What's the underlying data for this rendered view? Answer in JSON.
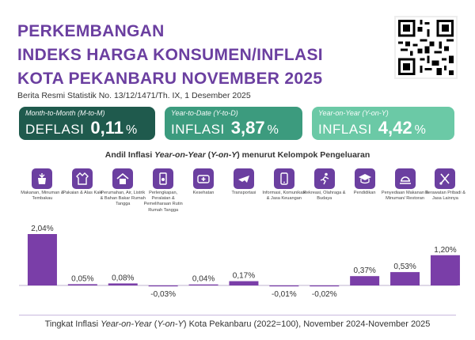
{
  "header": {
    "title_line1": "PERKEMBANGAN",
    "title_line2": "INDEKS HARGA KONSUMEN/INFLASI",
    "title_line3": "KOTA PEKANBARU NOVEMBER 2025",
    "subtitle": "Berita Resmi Statistik No. 13/12/1471/Th. IX, 1 Desember 2025"
  },
  "cards": [
    {
      "label": "Month-to-Month (M-to-M)",
      "kind": "DEFLASI",
      "value": "0,11",
      "unit": "%"
    },
    {
      "label": "Year-to-Date (Y-to-D)",
      "kind": "INFLASI",
      "value": "3,87",
      "unit": "%"
    },
    {
      "label": "Year-on-Year (Y-on-Y)",
      "kind": "INFLASI",
      "value": "4,42",
      "unit": "%"
    }
  ],
  "andil_title": {
    "pre": "Andil Inflasi ",
    "em": "Year-on-Year",
    "mid": " (",
    "em2": "Y-on-Y",
    "post": ") menurut Kelompok Pengeluaran"
  },
  "icons": [
    "food-icon",
    "clothing-icon",
    "house-icon",
    "appliance-icon",
    "health-icon",
    "airplane-icon",
    "phone-icon",
    "sport-icon",
    "graduation-icon",
    "restaurant-icon",
    "personal-care-icon"
  ],
  "colors": {
    "bar": "#7a3ea8",
    "title": "#6b3fa0"
  },
  "chart_data": {
    "type": "bar",
    "categories": [
      "Makanan, Minuman & Tembakau",
      "Pakaian & Alas Kaki",
      "Perumahan, Air, Listrik & Bahan Bakar Rumah Tangga",
      "Perlengkapan, Peralatan & Pemeliharaan Rutin Rumah Tangga",
      "Kesehatan",
      "Transportasi",
      "Informasi, Komunikasi & Jasa Keuangan",
      "Rekreasi, Olahraga & Budaya",
      "Pendidikan",
      "Penyediaan Makanan & Minuman/ Restoran",
      "Perawatan Pribadi & Jasa Lainnya"
    ],
    "values": [
      2.04,
      0.05,
      0.08,
      -0.03,
      0.04,
      0.17,
      -0.01,
      -0.02,
      0.37,
      0.53,
      1.2
    ],
    "value_labels": [
      "2,04%",
      "0,05%",
      "0,08%",
      "-0,03%",
      "0,04%",
      "0,17%",
      "-0,01%",
      "-0,02%",
      "0,37%",
      "0,53%",
      "1,20%"
    ]
  },
  "footer": {
    "pre": "Tingkat Inflasi ",
    "em": "Year-on-Year",
    "mid": " (",
    "em2": "Y-on-Y",
    "post": ") Kota Pekanbaru (2022=100), November 2024-November 2025"
  }
}
